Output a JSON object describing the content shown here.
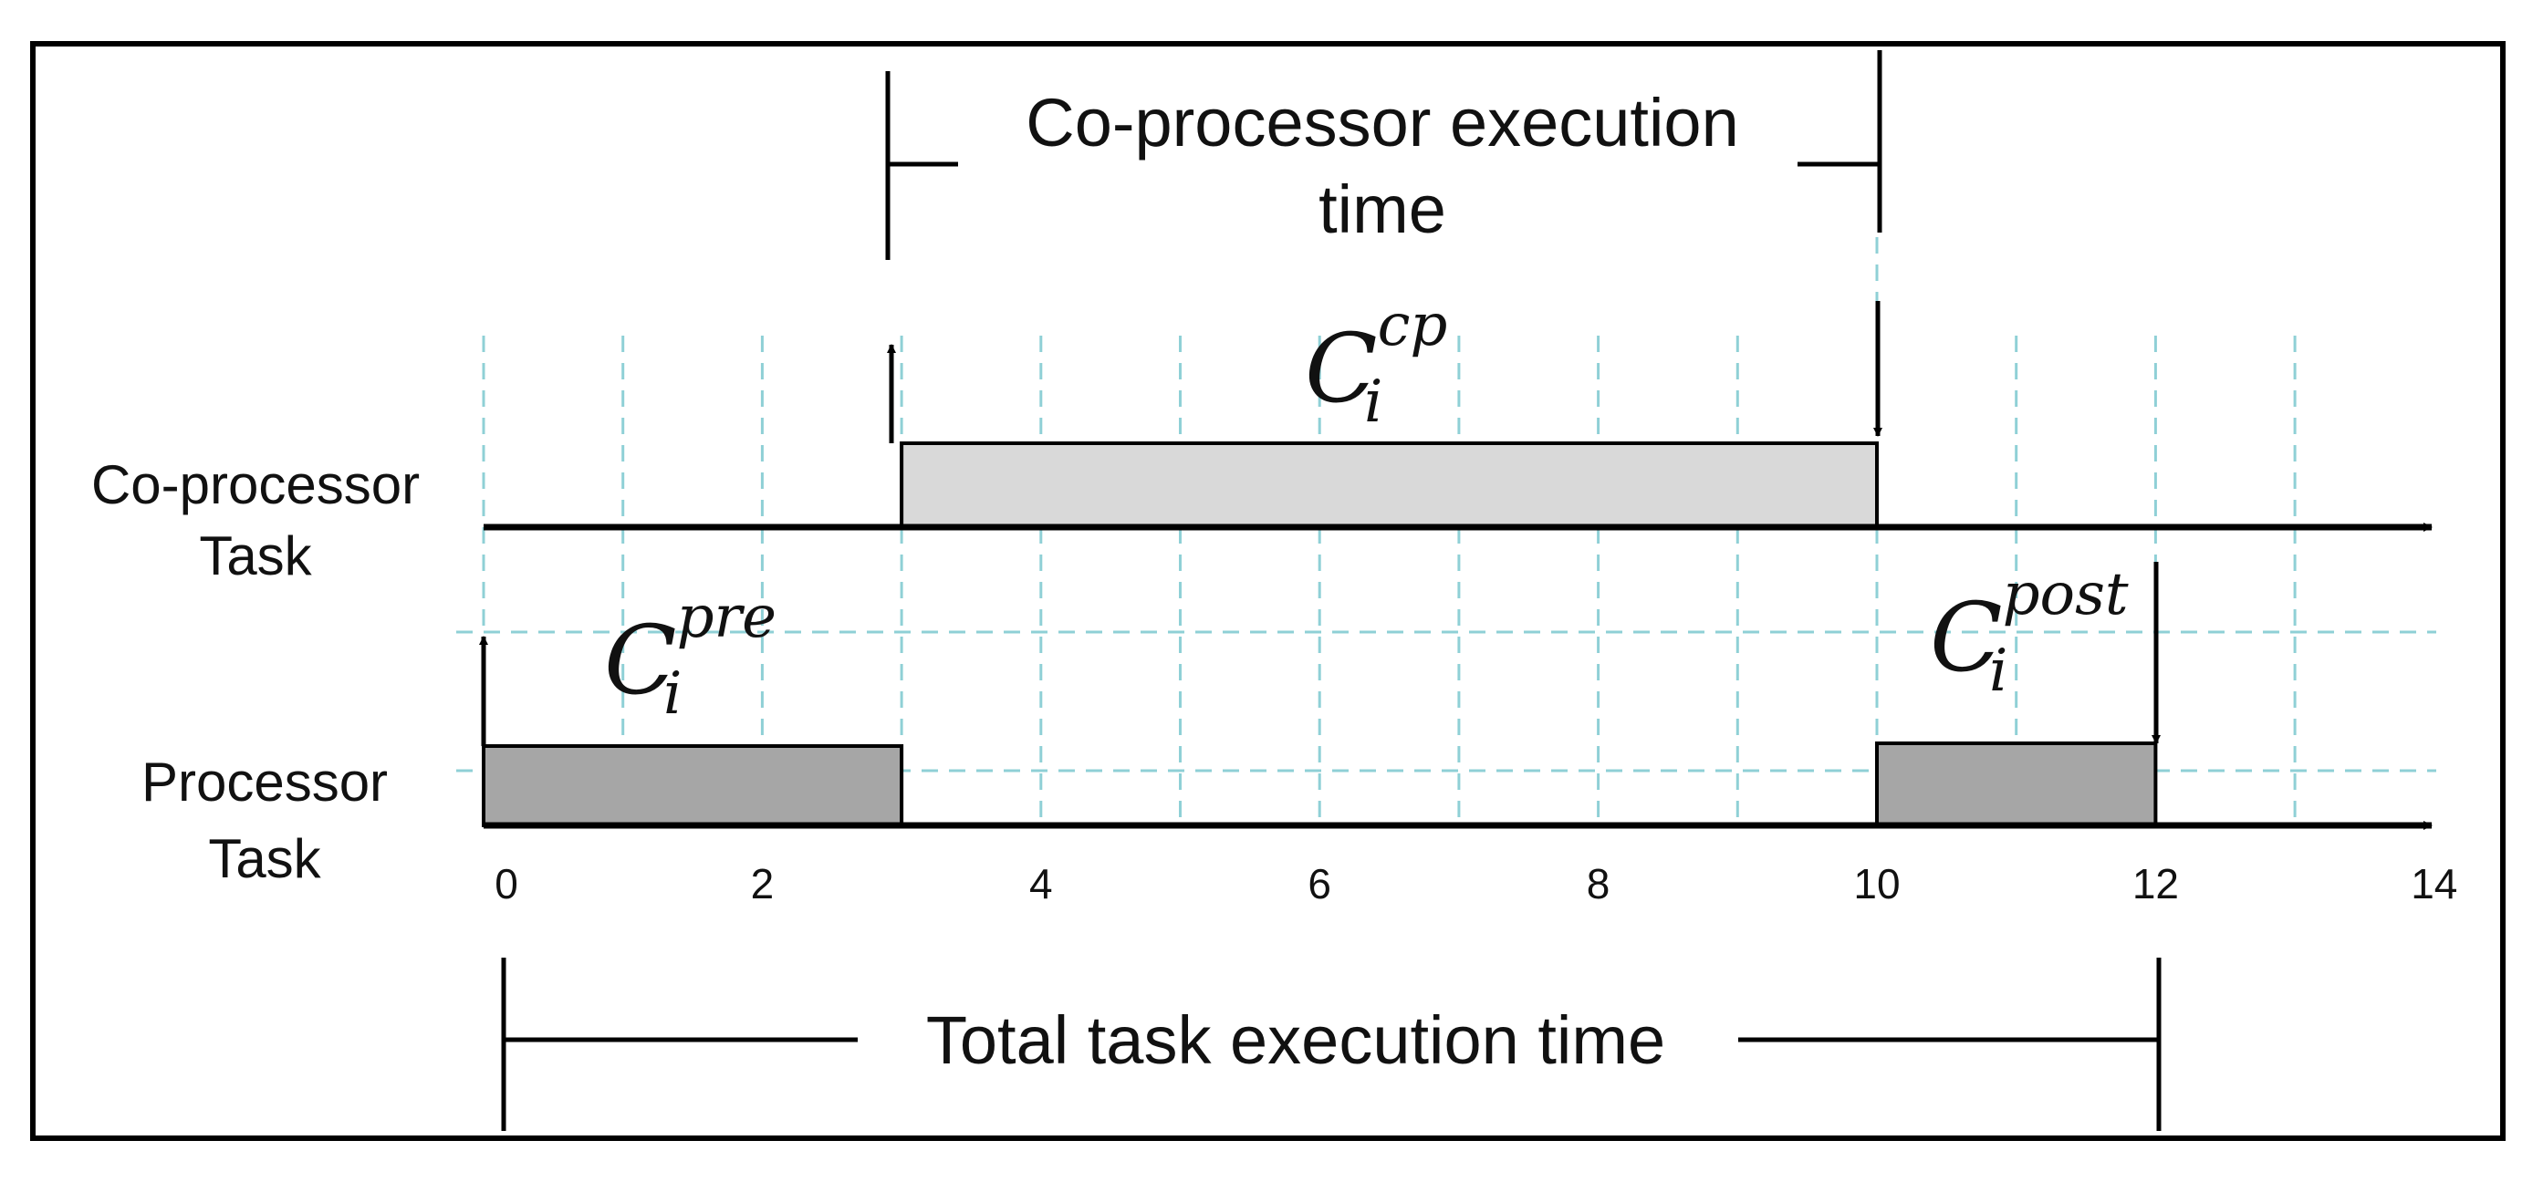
{
  "labels": {
    "coprocessor_execution_line1": "Co-processor execution",
    "coprocessor_execution_line2": "time",
    "coprocessor_task_line1": "Co-processor",
    "coprocessor_task_line2": "Task",
    "processor_task_line1": "Processor",
    "processor_task_line2": "Task",
    "total_execution": "Total task execution time"
  },
  "math": {
    "c_cp": {
      "base": "C",
      "sub": "i",
      "sup": "cp"
    },
    "c_pre": {
      "base": "C",
      "sub": "i",
      "sup": "pre"
    },
    "c_post": {
      "base": "C",
      "sub": "i",
      "sup": "post"
    }
  },
  "axis": {
    "ticks": [
      "0",
      "2",
      "4",
      "6",
      "8",
      "10",
      "12",
      "14"
    ],
    "min": 0,
    "max": 14,
    "gridlines": [
      0,
      1,
      2,
      3,
      4,
      5,
      6,
      7,
      8,
      9,
      10,
      11,
      12,
      13
    ]
  },
  "tasks": {
    "pre": {
      "start": 0,
      "end": 3,
      "color": "#a6a6a6"
    },
    "cp": {
      "start": 3,
      "end": 10,
      "color": "#d9d9d9"
    },
    "post": {
      "start": 10,
      "end": 12,
      "color": "#a6a6a6"
    }
  },
  "colors": {
    "grid": "#8fd0d6",
    "line": "#000000"
  }
}
